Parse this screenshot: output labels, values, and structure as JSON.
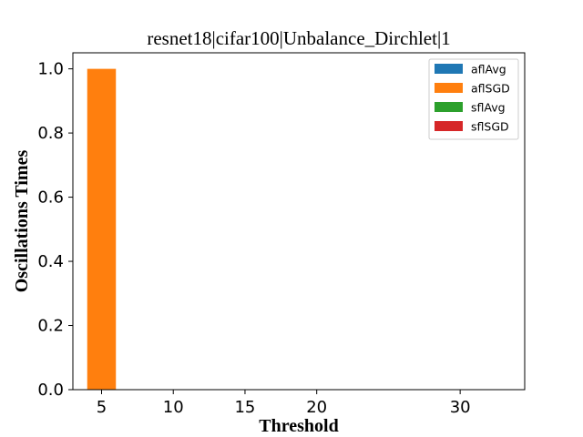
{
  "chart_data": {
    "type": "bar",
    "title": "resnet18|cifar100|Unbalance_Dirchlet|1",
    "xlabel": "Threshold",
    "ylabel": "Oscillations Times",
    "categories": [
      "5",
      "10",
      "15",
      "20",
      "30"
    ],
    "xlim": [
      3.0,
      34.5
    ],
    "x_positions": [
      5,
      10,
      15,
      20,
      30
    ],
    "ylim": [
      0,
      1.05
    ],
    "yticks": [
      0.0,
      0.2,
      0.4,
      0.6,
      0.8,
      1.0
    ],
    "ytick_labels": [
      "0.0",
      "0.2",
      "0.4",
      "0.6",
      "0.8",
      "1.0"
    ],
    "grid": false,
    "legend_position": "top-right",
    "series": [
      {
        "name": "aflAvg",
        "color": "#1f77b4",
        "values": [
          0,
          0,
          0,
          0,
          0
        ]
      },
      {
        "name": "aflSGD",
        "color": "#ff7f0e",
        "values": [
          1,
          0,
          0,
          0,
          0
        ]
      },
      {
        "name": "sflAvg",
        "color": "#2ca02c",
        "values": [
          0,
          0,
          0,
          0,
          0
        ]
      },
      {
        "name": "sflSGD",
        "color": "#d62728",
        "values": [
          0,
          0,
          0,
          0,
          0
        ]
      }
    ]
  }
}
